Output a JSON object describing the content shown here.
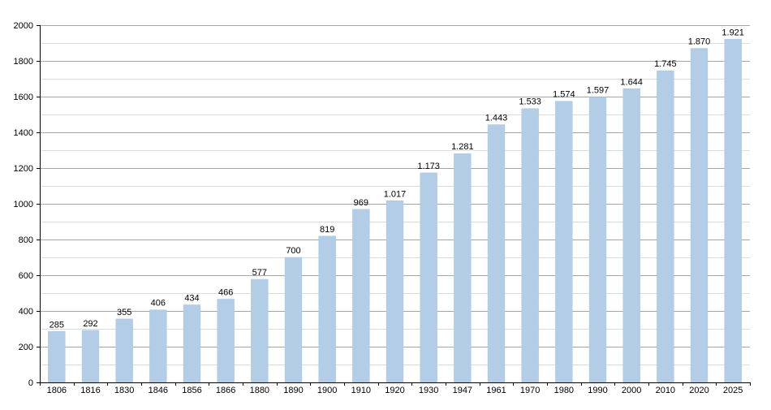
{
  "chart_data": {
    "type": "bar",
    "title": "",
    "xlabel": "",
    "ylabel": "",
    "categories": [
      "1806",
      "1816",
      "1830",
      "1846",
      "1856",
      "1866",
      "1880",
      "1890",
      "1900",
      "1910",
      "1920",
      "1930",
      "1947",
      "1961",
      "1970",
      "1980",
      "1990",
      "2000",
      "2010",
      "2020",
      "2025"
    ],
    "values": [
      285,
      292,
      355,
      406,
      434,
      466,
      577,
      700,
      819,
      969,
      1017,
      1173,
      1281,
      1443,
      1533,
      1574,
      1597,
      1644,
      1745,
      1870,
      1921
    ],
    "data_labels": [
      "285",
      "292",
      "355",
      "406",
      "434",
      "466",
      "577",
      "700",
      "819",
      "969",
      "1.017",
      "1.173",
      "1.281",
      "1.443",
      "1.533",
      "1.574",
      "1.597",
      "1.644",
      "1.745",
      "1.870",
      "1.921"
    ],
    "ylim": [
      0,
      2000
    ],
    "yticks": [
      0,
      200,
      400,
      600,
      800,
      1000,
      1200,
      1400,
      1600,
      1800,
      2000
    ],
    "ytick_labels": [
      "0",
      "200",
      "400",
      "600",
      "800",
      "1000",
      "1200",
      "1400",
      "1600",
      "1800",
      "2000"
    ],
    "minor_grid_step": 100,
    "grid": true,
    "legend": "none",
    "colors": {
      "bar": "#b4cde6",
      "bar_edge": "#a9c3df",
      "grid_major": "#a6a6a6",
      "grid_minor": "#dcdcdc",
      "axis": "#000000",
      "text": "#000000"
    }
  }
}
